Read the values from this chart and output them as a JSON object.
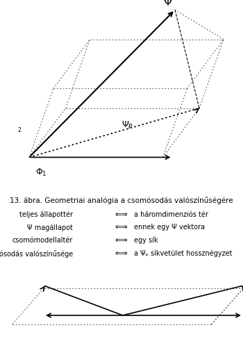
{
  "title": "13. ábra. Geometriai analógia a csomósodás valószínűségére",
  "caption_lines": [
    [
      "teljes állapottér",
      "⇐⇒",
      "a háromdimenziós tér"
    ],
    [
      "Ψ magállapot",
      "⇐⇒",
      "ennek egy Ψ vektora"
    ],
    [
      "csomómodellaltér",
      "⇐⇒",
      "egy sík"
    ],
    [
      "a csomósodás valószínűsége",
      "⇐⇒",
      "a Ψₚ síkvetület hossznégyzet"
    ]
  ],
  "bg_color": "#ffffff",
  "line_color": "#000000",
  "dotted_color": "#555555"
}
